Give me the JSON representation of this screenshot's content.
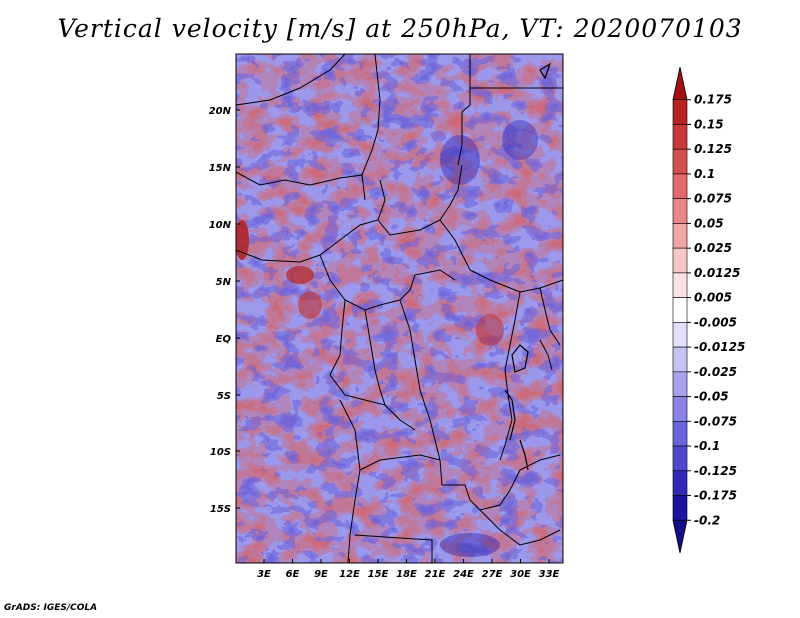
{
  "title": "Vertical velocity [m/s] at 250hPa, VT: 2020070103",
  "footer": "GrADS: IGES/COLA",
  "map": {
    "lat_ticks": [
      "20N",
      "15N",
      "10N",
      "5N",
      "EQ",
      "5S",
      "10S",
      "15S"
    ],
    "lon_ticks": [
      "3E",
      "6E",
      "9E",
      "12E",
      "15E",
      "18E",
      "21E",
      "24E",
      "27E",
      "30E",
      "33E"
    ]
  },
  "colorbar": {
    "levels": [
      "0.175",
      "0.15",
      "0.125",
      "0.1",
      "0.075",
      "0.05",
      "0.025",
      "0.0125",
      "0.005",
      "-0.005",
      "-0.0125",
      "-0.025",
      "-0.05",
      "-0.075",
      "-0.1",
      "-0.125",
      "-0.175",
      "-0.2"
    ],
    "colors": [
      "#a01010",
      "#b82222",
      "#c83838",
      "#d45050",
      "#e06a6a",
      "#e98686",
      "#f0a4a4",
      "#f7c6c6",
      "#fbe2e2",
      "#ffffff",
      "#e2e0fa",
      "#c6c2f4",
      "#a8a2ee",
      "#8a82e6",
      "#6c64dc",
      "#4e46cc",
      "#3228b8",
      "#1e14a0",
      "#140c88"
    ]
  }
}
